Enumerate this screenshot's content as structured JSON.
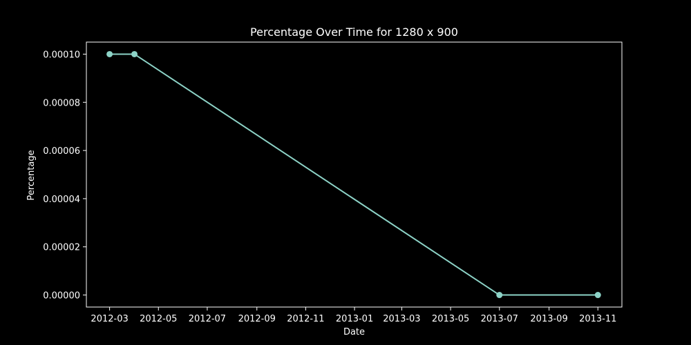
{
  "chart_data": {
    "type": "line",
    "title": "Percentage Over Time for 1280 x 900",
    "xlabel": "Date",
    "ylabel": "Percentage",
    "x_tick_labels": [
      "2012-03",
      "2012-05",
      "2012-07",
      "2012-09",
      "2012-11",
      "2013-01",
      "2013-03",
      "2013-05",
      "2013-07",
      "2013-09",
      "2013-11"
    ],
    "y_tick_labels": [
      "0.00000",
      "0.00002",
      "0.00004",
      "0.00006",
      "0.00008",
      "0.00010"
    ],
    "y_ticks": [
      0,
      2e-05,
      4e-05,
      6e-05,
      8e-05,
      0.0001
    ],
    "xlim": [
      "2012-02-01",
      "2013-12-01"
    ],
    "ylim": [
      -5e-06,
      0.000105
    ],
    "grid": false,
    "series": [
      {
        "x": [
          "2012-03-01",
          "2012-04-01",
          "2013-07-01",
          "2013-11-01"
        ],
        "values": [
          0.0001,
          0.0001,
          0.0,
          0.0
        ],
        "color": "#8dd3c7",
        "marker": "circle"
      }
    ]
  },
  "colors": {
    "background": "#000000",
    "axes": "#ffffff",
    "text": "#ffffff"
  }
}
